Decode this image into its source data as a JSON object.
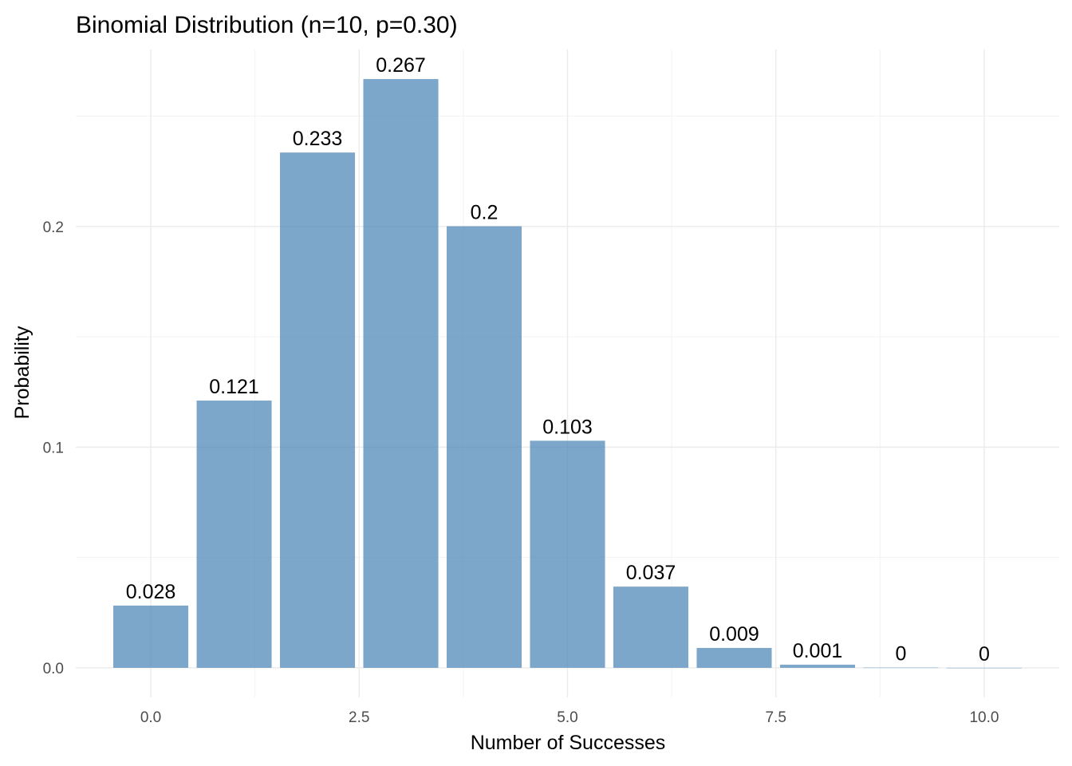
{
  "chart_data": {
    "type": "bar",
    "title": "Binomial Distribution (n=10, p=0.30)",
    "xlabel": "Number of Successes",
    "ylabel": "Probability",
    "x": [
      0,
      1,
      2,
      3,
      4,
      5,
      6,
      7,
      8,
      9,
      10
    ],
    "values": [
      0.0282,
      0.1211,
      0.2335,
      0.2668,
      0.2001,
      0.1029,
      0.0368,
      0.009,
      0.0014,
      0.0001,
      5.9e-06
    ],
    "data_labels": [
      "0.028",
      "0.121",
      "0.233",
      "0.267",
      "0.2",
      "0.103",
      "0.037",
      "0.009",
      "0.001",
      "0",
      "0"
    ],
    "xlim": [
      -0.9,
      10.9
    ],
    "ylim": [
      -0.0134,
      0.2802
    ],
    "x_ticks": [
      0,
      2.5,
      5,
      7.5,
      10
    ],
    "x_tick_labels": [
      "0.0",
      "2.5",
      "5.0",
      "7.5",
      "10.0"
    ],
    "y_ticks": [
      0,
      0.1,
      0.2
    ],
    "y_tick_labels": [
      "0.0",
      "0.1",
      "0.2"
    ],
    "x_minor_ticks": [
      1.25,
      3.75,
      6.25,
      8.75
    ],
    "y_minor_ticks": [
      0.05,
      0.15,
      0.25
    ],
    "bar_width": 0.9,
    "bar_color": "#4682b4",
    "bar_opacity": 0.7,
    "grid": true,
    "legend": "none"
  }
}
